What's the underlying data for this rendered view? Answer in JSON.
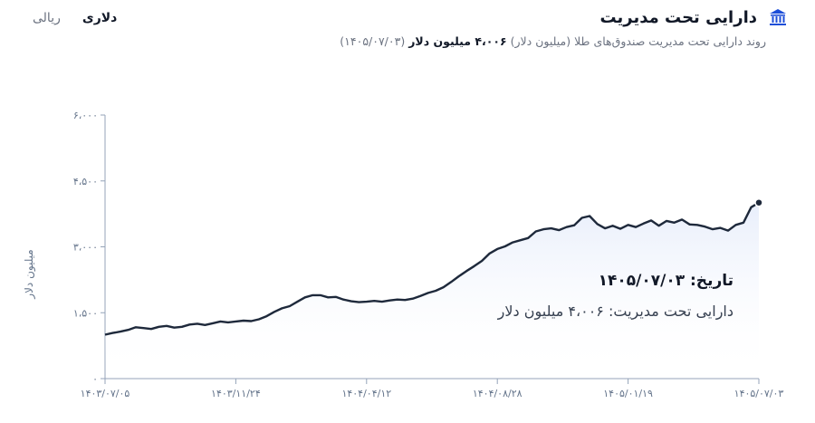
{
  "header": {
    "title": "دارایی تحت مدیریت",
    "subtitle_prefix": "روند دارایی تحت مدیریت صندوق‌های طلا (میلیون دلار)",
    "subtitle_value": "۴،۰۰۶ میلیون دلار",
    "subtitle_date": "(۱۴۰۵/۰۷/۰۳)",
    "icon": "bank-icon"
  },
  "currency_toggle": {
    "dollar_label": "دلاری",
    "rial_label": "ریالی",
    "selected": "dollar"
  },
  "tooltip": {
    "date_label": "تاریخ: ۱۴۰۵/۰۷/۰۳",
    "value_label": "دارایی تحت مدیریت: ۴،۰۰۶ میلیون دلار"
  },
  "colors": {
    "line": "#1e293b",
    "area_top": "#e8eefb",
    "axis": "#94a3b8",
    "tick_text": "#64748b",
    "grid": "#e5e7eb"
  },
  "chart_data": {
    "type": "area",
    "title": "دارایی تحت مدیریت",
    "ylabel": "میلیون دلار",
    "xlabel": "",
    "ylim": [
      0,
      6000
    ],
    "y_ticks": [
      0,
      1500,
      3000,
      4500,
      6000
    ],
    "y_tick_labels": [
      "۰",
      "۱،۵۰۰",
      "۳،۰۰۰",
      "۴،۵۰۰",
      "۶،۰۰۰"
    ],
    "x_tick_labels": [
      "۱۴۰۳/۰۷/۰۵",
      "۱۴۰۳/۱۱/۲۴",
      "۱۴۰۴/۰۴/۱۲",
      "۱۴۰۴/۰۸/۲۸",
      "۱۴۰۵/۰۱/۱۹",
      "۱۴۰۵/۰۷/۰۳"
    ],
    "grid": false,
    "series": [
      {
        "values": [
          1000,
          1040,
          1070,
          1110,
          1170,
          1150,
          1130,
          1180,
          1200,
          1160,
          1180,
          1230,
          1250,
          1220,
          1260,
          1300,
          1280,
          1300,
          1320,
          1310,
          1350,
          1420,
          1520,
          1600,
          1650,
          1750,
          1850,
          1900,
          1900,
          1850,
          1860,
          1800,
          1760,
          1740,
          1750,
          1770,
          1750,
          1780,
          1800,
          1790,
          1820,
          1880,
          1950,
          2000,
          2080,
          2200,
          2330,
          2450,
          2560,
          2680,
          2850,
          2950,
          3010,
          3100,
          3150,
          3200,
          3350,
          3400,
          3420,
          3380,
          3450,
          3490,
          3660,
          3700,
          3520,
          3420,
          3480,
          3410,
          3500,
          3450,
          3530,
          3600,
          3480,
          3590,
          3550,
          3620,
          3510,
          3500,
          3460,
          3400,
          3430,
          3370,
          3500,
          3550,
          3900,
          4006
        ]
      }
    ],
    "last_point": {
      "x": "۱۴۰۵/۰۷/۰۳",
      "y": 4006
    }
  }
}
